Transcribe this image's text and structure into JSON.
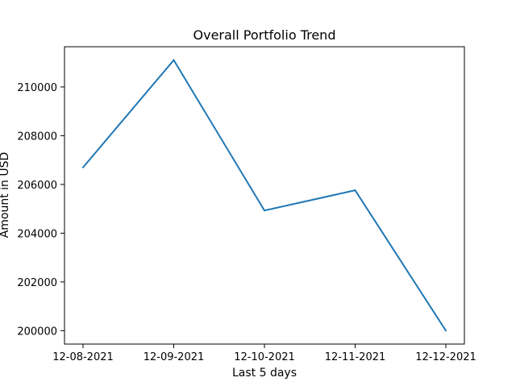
{
  "chart_data": {
    "type": "line",
    "title": "Overall Portfolio Trend",
    "xlabel": "Last 5 days",
    "ylabel": "Amount in USD",
    "categories": [
      "12-08-2021",
      "12-09-2021",
      "12-10-2021",
      "12-11-2021",
      "12-12-2021"
    ],
    "series": [
      {
        "values": [
          206700,
          211100,
          204930,
          205760,
          200000
        ],
        "color": "#1f77b4"
      }
    ],
    "ylim": [
      199450,
      211650
    ],
    "yticks": [
      200000,
      202000,
      204000,
      206000,
      208000,
      210000
    ],
    "grid": false,
    "legend": false
  }
}
